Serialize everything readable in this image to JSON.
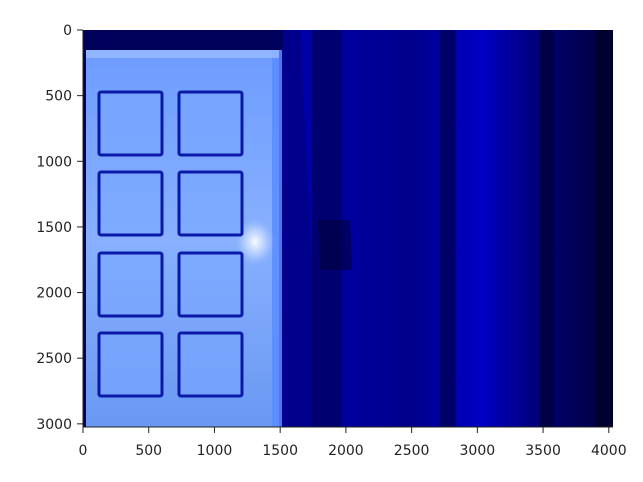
{
  "image": {
    "description_kind": "imshow-photo",
    "dominant_colors": [
      "#0000cc",
      "#0a0a8a",
      "#6aa0ff",
      "#a8c8ff",
      "#00004a"
    ]
  },
  "axes": {
    "x_ticks": [
      "0",
      "500",
      "1000",
      "1500",
      "2000",
      "2500",
      "3000",
      "3500",
      "4000"
    ],
    "y_ticks": [
      "0",
      "500",
      "1000",
      "1500",
      "2000",
      "2500",
      "3000"
    ],
    "x_range": [
      0,
      4032
    ],
    "y_range": [
      3024,
      0
    ]
  },
  "panel": {
    "rows": 4,
    "cols": 2
  }
}
